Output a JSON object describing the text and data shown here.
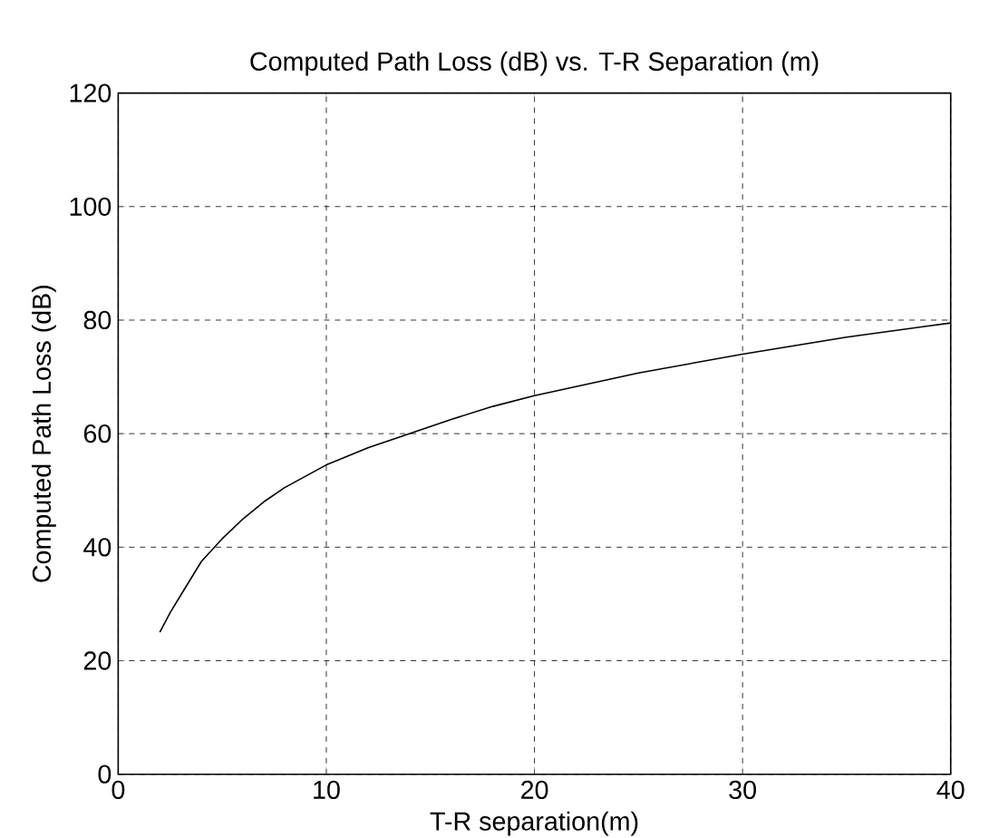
{
  "chart_data": {
    "type": "line",
    "title": "Computed Path Loss (dB) vs. T-R Separation (m)",
    "xlabel": "T-R separation(m)",
    "ylabel": "Computed Path Loss (dB)",
    "series": [
      {
        "color": "#000000",
        "x": [
          2,
          2.5,
          3,
          4,
          5,
          6,
          7,
          8,
          10,
          12,
          14,
          16,
          18,
          20,
          25,
          30,
          35,
          40
        ],
        "values": [
          25,
          28.5,
          31.5,
          37.5,
          41.5,
          45,
          48,
          50.5,
          54.5,
          57.5,
          60,
          62.5,
          64.8,
          66.7,
          70.7,
          74,
          77,
          79.5
        ]
      }
    ],
    "xlim": [
      0,
      40
    ],
    "ylim": [
      0,
      120
    ],
    "xticks": [
      0,
      10,
      20,
      30,
      40
    ],
    "yticks": [
      0,
      20,
      40,
      60,
      80,
      100,
      120
    ],
    "grid": true,
    "line_style": "solid",
    "marker": "none"
  }
}
